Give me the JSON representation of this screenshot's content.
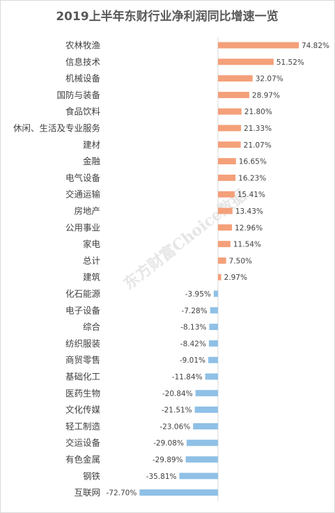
{
  "chart_data": {
    "type": "bar",
    "orientation": "horizontal",
    "title": "2019上半年东财行业净利润同比增速一览",
    "watermark": "东方财富Choice数据",
    "unit": "%",
    "colors": {
      "positive": "#f4a07a",
      "negative": "#8fc0e6"
    },
    "categories": [
      "农林牧渔",
      "信息技术",
      "机械设备",
      "国防与装备",
      "食品饮料",
      "休闲、生活及专业服务",
      "建材",
      "金融",
      "电气设备",
      "交通运输",
      "房地产",
      "公用事业",
      "家电",
      "总计",
      "建筑",
      "化石能源",
      "电子设备",
      "综合",
      "纺织服装",
      "商贸零售",
      "基础化工",
      "医药生物",
      "文化传媒",
      "轻工制造",
      "交运设备",
      "有色金属",
      "钢铁",
      "互联网"
    ],
    "values": [
      74.82,
      51.52,
      32.07,
      28.97,
      21.8,
      21.33,
      21.07,
      16.65,
      16.23,
      15.41,
      13.43,
      12.96,
      11.54,
      7.5,
      2.97,
      -3.95,
      -7.28,
      -8.13,
      -8.42,
      -9.01,
      -11.84,
      -20.84,
      -21.51,
      -23.06,
      -29.08,
      -29.89,
      -35.81,
      -72.7
    ],
    "data_labels": [
      "74.82%",
      "51.52%",
      "32.07%",
      "28.97%",
      "21.80%",
      "21.33%",
      "21.07%",
      "16.65%",
      "16.23%",
      "15.41%",
      "13.43%",
      "12.96%",
      "11.54%",
      "7.50%",
      "2.97%",
      "-3.95%",
      "-7.28%",
      "-8.13%",
      "-8.42%",
      "-9.01%",
      "-11.84%",
      "-20.84%",
      "-21.51%",
      "-23.06%",
      "-29.08%",
      "-29.89%",
      "-35.81%",
      "-72.70%"
    ],
    "grid": false,
    "legend": false
  }
}
